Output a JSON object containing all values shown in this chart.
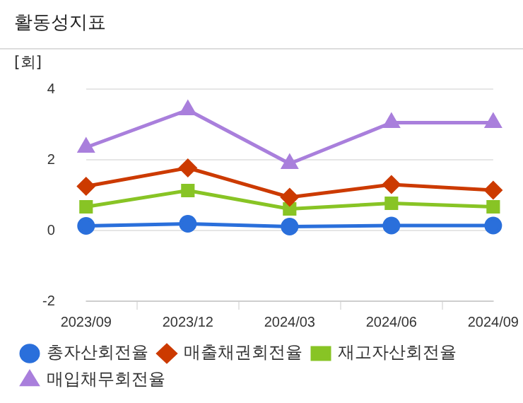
{
  "chart_data": {
    "type": "line",
    "title": "활동성지표",
    "ylabel": "[회]",
    "categories": [
      "2023/09",
      "2023/12",
      "2024/03",
      "2024/06",
      "2024/09"
    ],
    "series": [
      {
        "name": "총자산회전율",
        "color": "#2a6fdb",
        "marker": "circle",
        "values": [
          0.13,
          0.19,
          0.11,
          0.14,
          0.14
        ]
      },
      {
        "name": "매출채권회전율",
        "color": "#cc3a00",
        "marker": "diamond",
        "values": [
          1.25,
          1.77,
          0.94,
          1.3,
          1.14
        ]
      },
      {
        "name": "재고자산회전율",
        "color": "#88c425",
        "marker": "square",
        "values": [
          0.67,
          1.13,
          0.61,
          0.77,
          0.67
        ]
      },
      {
        "name": "매입채무회전율",
        "color": "#a97fdc",
        "marker": "triangle",
        "values": [
          2.35,
          3.41,
          1.89,
          3.05,
          3.05
        ]
      }
    ],
    "ylim": [
      -2,
      4
    ],
    "yticks": [
      -2,
      0,
      2,
      4
    ],
    "grid": "y",
    "legend": "bottom",
    "line_style": "solid"
  }
}
